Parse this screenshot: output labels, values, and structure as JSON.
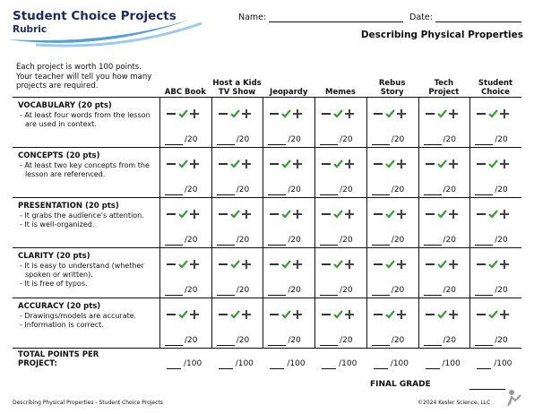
{
  "header": {
    "title": "Student Choice Projects",
    "subtitle": "Rubric",
    "name_label": "Name:",
    "date_label": "Date:",
    "heading": "Describing Physical Properties"
  },
  "table": {
    "intro": "Each project is worth 100 points. Your teacher will tell you how many projects are required.",
    "columns": [
      "ABC Book",
      "Host a Kids TV Show",
      "Jeopardy",
      "Memes",
      "Rebus Story",
      "Tech Project",
      "Student Choice"
    ],
    "rows": [
      {
        "title": "VOCABULARY (20 pts)",
        "bullets": [
          "- At least four words from the lesson are used in context."
        ],
        "score": "/20"
      },
      {
        "title": "CONCEPTS (20 pts)",
        "bullets": [
          "- At least two key concepts from the lesson are referenced."
        ],
        "score": "/20"
      },
      {
        "title": "PRESENTATION (20 pts)",
        "bullets": [
          "- It grabs the audience's attention.",
          "- It is well-organized."
        ],
        "score": "/20"
      },
      {
        "title": "CLARITY (20 pts)",
        "bullets": [
          "- It is easy to understand (whether spoken or written).",
          "- It is free of typos."
        ],
        "score": "/20"
      },
      {
        "title": "ACCURACY (20 pts)",
        "bullets": [
          "- Drawings/models are accurate.",
          "- Information is correct."
        ],
        "score": "/20"
      }
    ],
    "total": {
      "label": "TOTAL POINTS PER PROJECT:",
      "score": "/100"
    }
  },
  "final_grade": "FINAL GRADE",
  "footer": {
    "left": "Describing Physical Properties - Student Choice Projects",
    "right": "©2024  Kesler Science, LLC"
  }
}
